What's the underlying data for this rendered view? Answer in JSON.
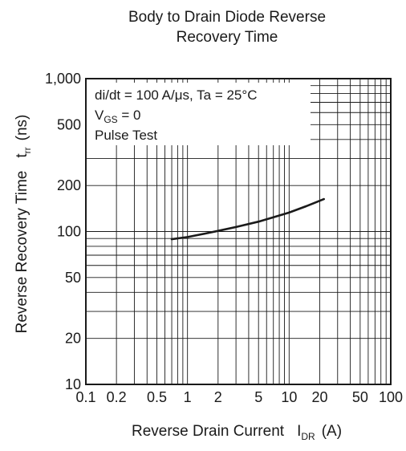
{
  "chart_data": {
    "type": "line",
    "title_lines": [
      "Body to Drain Diode Reverse",
      "Recovery Time"
    ],
    "x_scale": "log",
    "y_scale": "log",
    "xlim": [
      0.1,
      100
    ],
    "ylim": [
      10,
      1000
    ],
    "x_ticks": [
      0.1,
      0.2,
      0.5,
      1,
      2,
      5,
      10,
      20,
      50,
      100
    ],
    "x_tick_labels": [
      "0.1",
      "0.2",
      "0.5",
      "1",
      "2",
      "5",
      "10",
      "20",
      "50",
      "100"
    ],
    "y_ticks": [
      10,
      20,
      50,
      100,
      200,
      500,
      1000
    ],
    "y_tick_labels": [
      "10",
      "20",
      "50",
      "100",
      "200",
      "500",
      "1,000"
    ],
    "xlabel": {
      "text": "Reverse Drain Current",
      "symbol": "I",
      "subscript": "DR",
      "unit": "(A)"
    },
    "ylabel": {
      "text": "Reverse Recovery Time",
      "symbol": "t",
      "subscript": "rr",
      "unit": "(ns)"
    },
    "annotations": [
      {
        "text": "di/dt = 100 A/μs, Ta = 25°C"
      },
      {
        "symbol": "V",
        "subscript": "GS",
        "text": " = 0"
      },
      {
        "text": "Pulse Test"
      }
    ],
    "grid": true,
    "series": [
      {
        "x": [
          0.7,
          1,
          1.5,
          2,
          3,
          5,
          7,
          10,
          15,
          22
        ],
        "y": [
          89,
          92,
          97,
          101,
          107,
          116,
          124,
          133,
          147,
          163
        ]
      }
    ]
  }
}
